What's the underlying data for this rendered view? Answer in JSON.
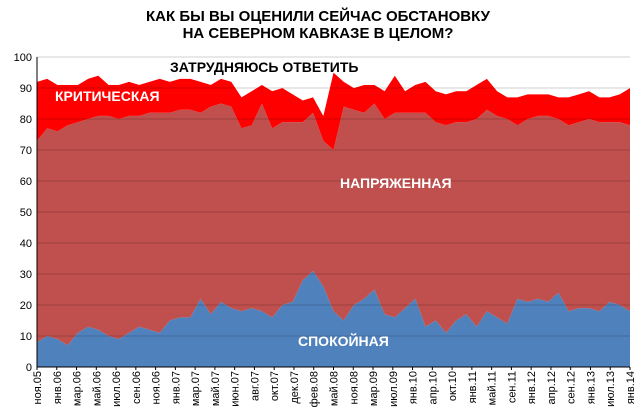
{
  "chart_data": {
    "type": "area",
    "title_lines": [
      "КАК БЫ ВЫ ОЦЕНИЛИ СЕЙЧАС ОБСТАНОВКУ",
      "НА СЕВЕРНОМ КАВКАЗЕ В ЦЕЛОМ?"
    ],
    "ylim": [
      0,
      100
    ],
    "yticks": [
      0,
      10,
      20,
      30,
      40,
      50,
      60,
      70,
      80,
      90,
      100
    ],
    "grid": true,
    "xlabels": [
      "ноя.05",
      "янв.06",
      "мар.06",
      "май.06",
      "июл.06",
      "сен.06",
      "ноя.06",
      "янв.07",
      "мар.07",
      "май.07",
      "июн.07",
      "авг.07",
      "окт.07",
      "дек.07",
      "фев.08",
      "май.08",
      "ноя.08",
      "мар.09",
      "июл.09",
      "янв.10",
      "апр.10",
      "окт.10",
      "янв.11",
      "май.11",
      "сен.11",
      "янв.12",
      "апр.12",
      "сен.12",
      "янв.13",
      "июл.13",
      "янв.14"
    ],
    "colors": {
      "calm": "#4f81bd",
      "tense": "#c0504d",
      "critical": "#ff0000",
      "difficult": "#ffffff"
    },
    "series": [
      {
        "name": "СПОКОЙНАЯ",
        "values": [
          8,
          10,
          9,
          7,
          11,
          13,
          12,
          10,
          9,
          11,
          13,
          12,
          11,
          15,
          16,
          16,
          22,
          17,
          21,
          19,
          18,
          19,
          18,
          16,
          20,
          21,
          28,
          31,
          26,
          18,
          15,
          20,
          22,
          25,
          17,
          16,
          19,
          22,
          13,
          15,
          11,
          15,
          17,
          13,
          18,
          16,
          14,
          22,
          21,
          22,
          21,
          24,
          18,
          19,
          19,
          18,
          21,
          20,
          18
        ]
      },
      {
        "name": "НАПРЯЖЕННАЯ",
        "values": [
          65,
          67,
          67,
          71,
          68,
          67,
          69,
          71,
          71,
          70,
          68,
          70,
          71,
          67,
          67,
          67,
          60,
          67,
          64,
          65,
          59,
          59,
          67,
          61,
          59,
          58,
          51,
          51,
          47,
          52,
          69,
          63,
          60,
          60,
          63,
          66,
          63,
          60,
          69,
          64,
          67,
          64,
          62,
          67,
          65,
          65,
          66,
          56,
          59,
          59,
          60,
          56,
          60,
          60,
          61,
          61,
          58,
          59,
          60
        ]
      },
      {
        "name": "КРИТИЧЕСКАЯ",
        "values": [
          19,
          16,
          15,
          13,
          12,
          13,
          13,
          10,
          11,
          11,
          10,
          10,
          11,
          10,
          10,
          10,
          10,
          7,
          8,
          8,
          10,
          11,
          6,
          12,
          11,
          9,
          7,
          5,
          8,
          25,
          8,
          7,
          9,
          6,
          9,
          12,
          7,
          9,
          10,
          10,
          10,
          10,
          10,
          11,
          10,
          8,
          7,
          9,
          8,
          7,
          7,
          7,
          9,
          9,
          9,
          8,
          8,
          9,
          12
        ]
      },
      {
        "name": "ЗАТРУДНЯЮСЬ ОТВЕТИТЬ",
        "values": [
          8,
          7,
          9,
          9,
          9,
          7,
          6,
          9,
          9,
          8,
          9,
          8,
          7,
          8,
          7,
          7,
          8,
          9,
          7,
          8,
          13,
          11,
          9,
          11,
          10,
          12,
          14,
          13,
          19,
          5,
          8,
          10,
          9,
          9,
          11,
          6,
          11,
          9,
          8,
          11,
          12,
          11,
          11,
          9,
          7,
          11,
          13,
          13,
          12,
          12,
          12,
          13,
          13,
          12,
          11,
          13,
          13,
          12,
          10
        ]
      }
    ],
    "annotations": [
      "ЗАТРУДНЯЮСЬ ОТВЕТИТЬ",
      "КРИТИЧЕСКАЯ",
      "НАПРЯЖЕННАЯ",
      "СПОКОЙНАЯ"
    ]
  }
}
